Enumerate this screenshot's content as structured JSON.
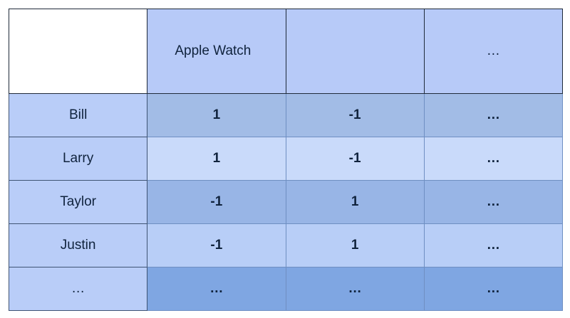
{
  "table": {
    "header": {
      "corner": "",
      "columns": [
        "Apple Watch",
        "",
        "…"
      ]
    },
    "rows": [
      {
        "name": "Bill",
        "values": [
          "1",
          "-1",
          "…"
        ]
      },
      {
        "name": "Larry",
        "values": [
          "1",
          "-1",
          "…"
        ]
      },
      {
        "name": "Taylor",
        "values": [
          "-1",
          "1",
          "…"
        ]
      },
      {
        "name": "Justin",
        "values": [
          "-1",
          "1",
          "…"
        ]
      },
      {
        "name": "…",
        "values": [
          "…",
          "…",
          "…"
        ]
      }
    ]
  },
  "colors": {
    "header_fill": "#b7caf8",
    "row_header_fill": "#b9cdf8",
    "band_dark": "#98b5e6",
    "band_light": "#c9dafa",
    "last_row_fill": "#7fa6e2",
    "text": "#1b3a66"
  }
}
